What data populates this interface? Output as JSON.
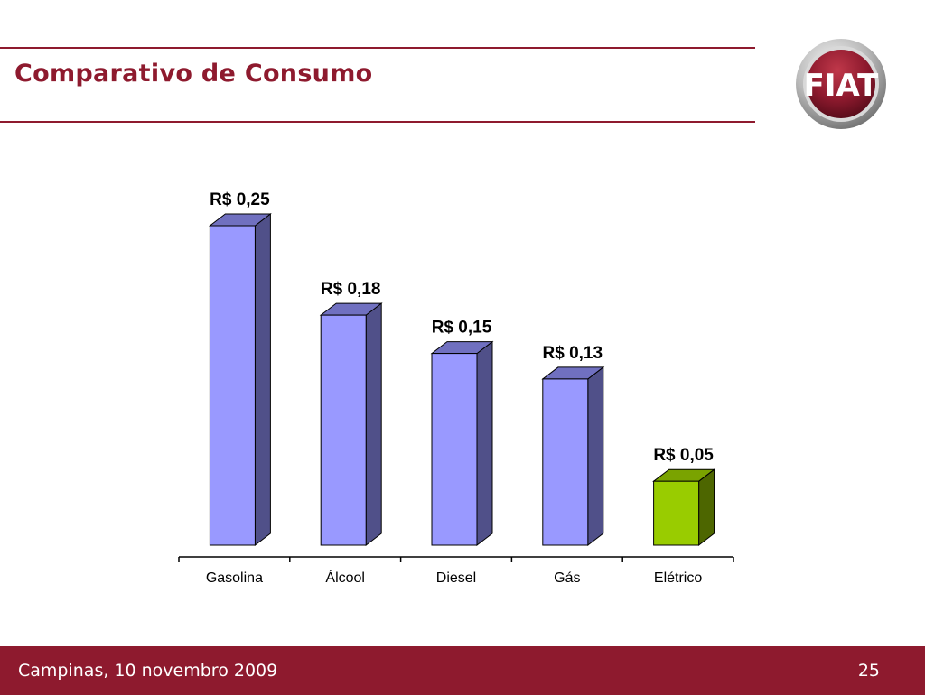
{
  "header": {
    "title": "Comparativo de Consumo"
  },
  "logo": {
    "text": "FIAT",
    "icon": "fiat-logo"
  },
  "footer": {
    "text": "Campinas, 10 novembro 2009",
    "page": "25"
  },
  "colors": {
    "brand": "#8e1a2e",
    "bar_front": "#9999ff",
    "bar_side": "#505089",
    "bar_top": "#7070c0",
    "highlight_front": "#99cc00",
    "highlight_side": "#4d6600",
    "highlight_top": "#7aa300"
  },
  "chart_data": {
    "type": "bar",
    "categories": [
      "Gasolina",
      "Álcool",
      "Diesel",
      "Gás",
      "Elétrico"
    ],
    "values": [
      0.25,
      0.18,
      0.15,
      0.13,
      0.05
    ],
    "labels": [
      "R$ 0,25",
      "R$ 0,18",
      "R$ 0,15",
      "R$ 0,13",
      "R$ 0,05"
    ],
    "highlight": [
      false,
      false,
      false,
      false,
      true
    ],
    "ylim": [
      0,
      0.25
    ],
    "grid": false,
    "three_d": true
  }
}
